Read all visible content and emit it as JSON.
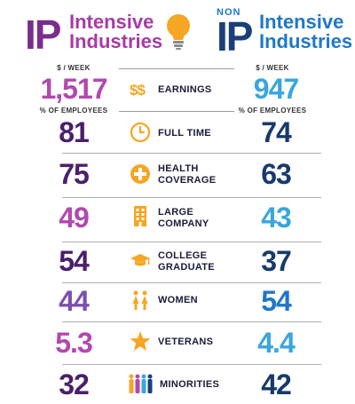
{
  "header": {
    "left_ip": "IP",
    "left_words": [
      "Intensive",
      "Industries"
    ],
    "non": "NON",
    "right_ip": "IP",
    "right_words": [
      "Intensive",
      "Industries"
    ]
  },
  "units": {
    "week": "$ / WEEK",
    "percent": "% OF EMPLOYEES"
  },
  "rows": [
    {
      "label": [
        "EARNINGS"
      ],
      "left": "1,517",
      "right": "947",
      "icon": "dollar-signs-icon"
    },
    {
      "label": [
        "FULL TIME"
      ],
      "left": "81",
      "right": "74",
      "icon": "clock-icon"
    },
    {
      "label": [
        "HEALTH",
        "COVERAGE"
      ],
      "left": "75",
      "right": "63",
      "icon": "health-plus-icon"
    },
    {
      "label": [
        "LARGE",
        "COMPANY"
      ],
      "left": "49",
      "right": "43",
      "icon": "building-icon"
    },
    {
      "label": [
        "COLLEGE",
        "GRADUATE"
      ],
      "left": "54",
      "right": "37",
      "icon": "graduation-cap-icon"
    },
    {
      "label": [
        "WOMEN"
      ],
      "left": "44",
      "right": "54",
      "icon": "women-icon"
    },
    {
      "label": [
        "VETERANS"
      ],
      "left": "5.3",
      "right": "4.4",
      "icon": "star-icon"
    },
    {
      "label": [
        "MINORITIES"
      ],
      "left": "32",
      "right": "42",
      "icon": "people-icon"
    }
  ],
  "colors": {
    "purple_dark": "#4a1f6b",
    "purple_mid": "#7a2d8c",
    "purple_light": "#b248b0",
    "blue_dark": "#173a6b",
    "blue_mid": "#1f78c8",
    "blue_light": "#39a6dc",
    "gold": "#f5a623",
    "ink": "#1b1b3a"
  }
}
